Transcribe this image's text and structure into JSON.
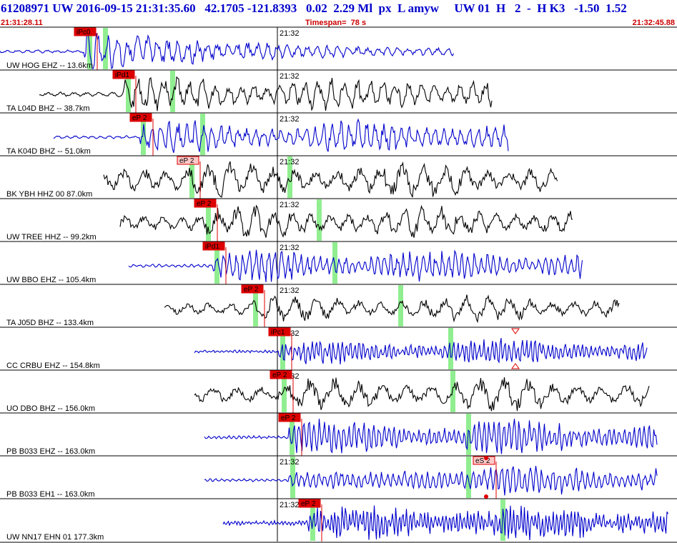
{
  "header": {
    "line1": "61208971 UW 2016-09-15 21:31:35.60   42.1705 -121.8393   0.02  2.29 Ml  px  L amyw     UW 01  H   2  -  H K3   -1.50  1.52",
    "start_time": "21:31:28.11",
    "timespan": "Timespan=  78 s",
    "end_time": "21:32:45.88",
    "title_color": "#0000cc",
    "time_color": "#cc0000"
  },
  "time_marker_label": "21:32",
  "colors": {
    "blue_trace": "#0000cc",
    "black_trace": "#000000",
    "pick_red": "#dd0000",
    "pick_pink": "#ffc8c8",
    "window_green": "#90ee90"
  },
  "traces": [
    {
      "label": "UW HOG EHZ -- 13.6km",
      "color": "blue",
      "pick": "iPc0",
      "pick_style": "red",
      "seed": 3
    },
    {
      "label": "TA L04D BHZ -- 38.7km",
      "color": "black",
      "pick": "iPd1",
      "pick_style": "red",
      "seed": 7
    },
    {
      "label": "TA K04D BHZ -- 51.0km",
      "color": "blue",
      "pick": "eP 2",
      "pick_style": "red",
      "seed": 11
    },
    {
      "label": "BK YBH HHZ 00 87.0km",
      "color": "black",
      "pick": "eP 2",
      "pick_style": "pink",
      "seed": 13
    },
    {
      "label": "UW TREE HHZ -- 99.2km",
      "color": "black",
      "pick": "eP 2",
      "pick_style": "red",
      "seed": 17
    },
    {
      "label": "UW BBO EHZ -- 105.4km",
      "color": "blue",
      "pick": "iPd1",
      "pick_style": "red",
      "seed": 19
    },
    {
      "label": "TA J05D BHZ -- 133.4km",
      "color": "black",
      "pick": "eP 2",
      "pick_style": "red",
      "seed": 23
    },
    {
      "label": "CC CRBU EHZ -- 154.8km",
      "color": "blue",
      "pick": "iPc1",
      "pick_style": "red",
      "seed": 29
    },
    {
      "label": "UO DBO BHZ -- 156.0km",
      "color": "black",
      "pick": "eP 2",
      "pick_style": "red",
      "seed": 31
    },
    {
      "label": "PB B033 EHZ -- 163.0km",
      "color": "blue",
      "pick": "eP 2",
      "pick_style": "red",
      "seed": 37
    },
    {
      "label": "PB B033 EH1 -- 163.0km",
      "color": "blue",
      "pick": "eS 2",
      "pick_style": "pink",
      "seed": 41
    },
    {
      "label": "UW NN17 EHN 01 177.3km",
      "color": "blue",
      "pick": "eP 2",
      "pick_style": "red",
      "seed": 43
    }
  ]
}
